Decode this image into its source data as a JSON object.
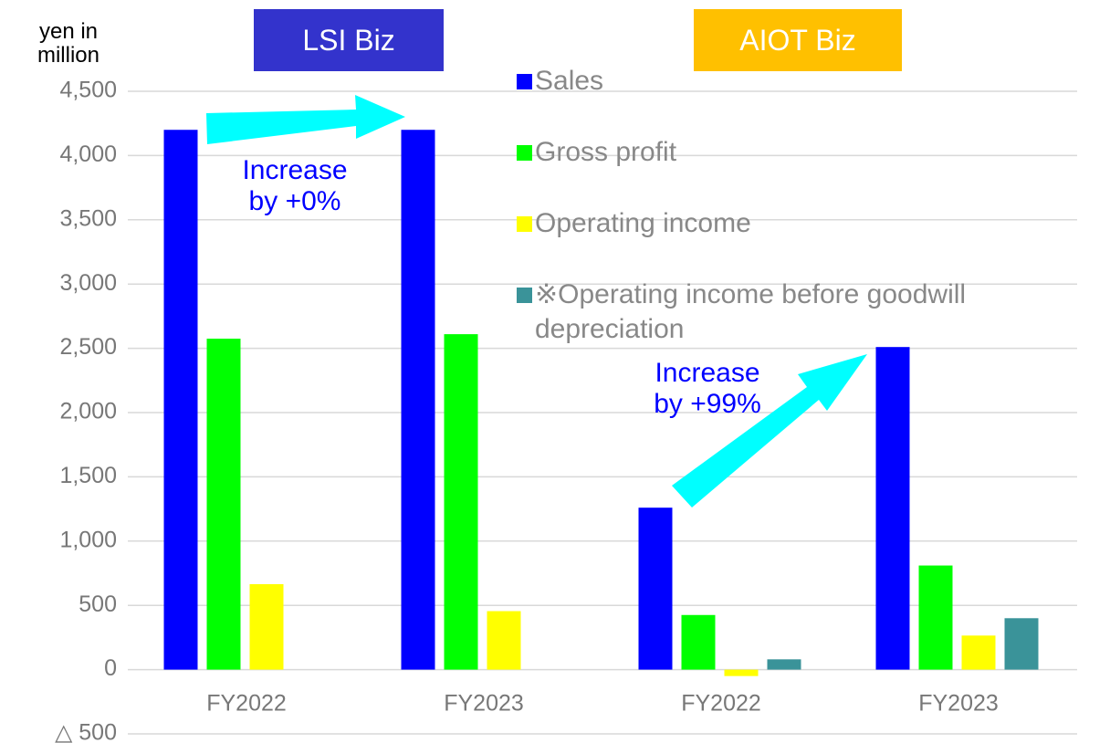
{
  "chart_data": {
    "type": "bar",
    "y_label": "yen in million",
    "groups": [
      {
        "label": "LSI Biz",
        "color": "#3333cc"
      },
      {
        "label": "AIOT Biz",
        "color": "#ffc000"
      }
    ],
    "categories": [
      "FY2022",
      "FY2023",
      "FY2022",
      "FY2023"
    ],
    "series": [
      {
        "name": "Sales",
        "color": "#0000ff",
        "values": [
          4200,
          4200,
          1260,
          2510
        ]
      },
      {
        "name": "Gross profit",
        "color": "#00ff00",
        "values": [
          2575,
          2610,
          425,
          810
        ]
      },
      {
        "name": "Operating income",
        "color": "#ffff00",
        "values": [
          665,
          455,
          -50,
          265
        ]
      },
      {
        "name": "※Operating income before goodwill depreciation",
        "color": "#3a9399",
        "values": [
          null,
          null,
          80,
          400
        ]
      }
    ],
    "annotations": [
      "Increase by +0%",
      "Increase by +99%"
    ],
    "ylim": [
      -500,
      4500
    ],
    "yticks": [
      {
        "value": -500,
        "label": "△ 500"
      },
      0,
      500,
      {
        "value": 1000,
        "label": "1,000"
      },
      {
        "value": 1500,
        "label": "1,500"
      },
      {
        "value": 2000,
        "label": "2,000"
      },
      {
        "value": 2500,
        "label": "2,500"
      },
      {
        "value": 3000,
        "label": "3,000"
      },
      {
        "value": 3500,
        "label": "3,500"
      },
      {
        "value": 4000,
        "label": "4,000"
      },
      {
        "value": 4500,
        "label": "4,500"
      }
    ],
    "grid": true,
    "legend": "top-right"
  }
}
